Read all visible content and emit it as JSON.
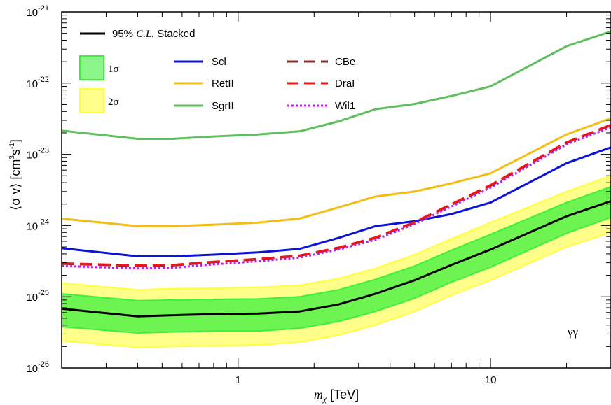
{
  "chart_data": {
    "type": "line",
    "xscale": "log",
    "yscale": "log",
    "xlim": [
      0.2,
      30
    ],
    "ylim": [
      1e-26,
      1e-21
    ],
    "xlabel": {
      "italic": "m",
      "sub": "χ",
      "rest": " [TeV]"
    },
    "ylabel": {
      "main": "⟨σ v⟩ [cm",
      "sup1": "3",
      "mid": "s",
      "sup2": "-1",
      "end": "]"
    },
    "x_tick_labels": [
      {
        "value": 1,
        "label": "1"
      },
      {
        "value": 10,
        "label": "10"
      }
    ],
    "y_tick_labels": [
      {
        "value": 1e-21,
        "base": "10",
        "exp": "-21"
      },
      {
        "value": 1e-22,
        "base": "10",
        "exp": "-22"
      },
      {
        "value": 1e-23,
        "base": "10",
        "exp": "-23"
      },
      {
        "value": 1e-24,
        "base": "10",
        "exp": "-24"
      },
      {
        "value": 1e-25,
        "base": "10",
        "exp": "-25"
      },
      {
        "value": 1e-26,
        "base": "10",
        "exp": "-26"
      }
    ],
    "annotation": "γγ",
    "x": [
      0.2,
      0.4,
      0.55,
      0.8,
      1.2,
      1.75,
      2.5,
      3.5,
      5,
      7,
      10,
      20,
      30
    ],
    "stacked": {
      "name": "95% C.L. Stacked",
      "name_prefix": "95% ",
      "name_italic": "C.L.",
      "name_suffix": " Stacked",
      "color": "#000000",
      "values": [
        6.8e-26,
        5.3e-26,
        5.5e-26,
        5.7e-26,
        5.8e-26,
        6.2e-26,
        7.8e-26,
        1.1e-25,
        1.7e-25,
        2.8e-25,
        4.6e-25,
        1.35e-24,
        2.2e-24
      ]
    },
    "band_1sigma": {
      "label": "1σ",
      "color": "#3cf03c",
      "lower": [
        3.8e-26,
        3.1e-26,
        3.2e-26,
        3.3e-26,
        3.3e-26,
        3.6e-26,
        4.5e-26,
        6.2e-26,
        9.5e-26,
        1.6e-25,
        2.6e-25,
        7.8e-25,
        1.3e-24
      ],
      "upper": [
        1.1e-25,
        8.8e-26,
        9e-26,
        9.2e-26,
        9.3e-26,
        1e-25,
        1.25e-25,
        1.75e-25,
        2.7e-25,
        4.5e-25,
        7.5e-25,
        2.1e-24,
        3.5e-24
      ]
    },
    "band_2sigma": {
      "label": "2σ",
      "color": "#ffff3c",
      "lower": [
        2.4e-26,
        1.95e-26,
        2e-26,
        2.05e-26,
        2.1e-26,
        2.3e-26,
        2.9e-26,
        4e-26,
        6.2e-26,
        1.05e-25,
        1.7e-25,
        5e-25,
        8e-25
      ],
      "upper": [
        1.55e-25,
        1.25e-25,
        1.3e-25,
        1.32e-25,
        1.35e-25,
        1.45e-25,
        1.8e-25,
        2.5e-25,
        3.9e-25,
        6.5e-25,
        1.1e-24,
        3e-24,
        5e-24
      ]
    },
    "series": [
      {
        "name": "Scl",
        "color": "#0a14d2",
        "dash": "solid",
        "values": [
          4.8e-25,
          3.7e-25,
          3.7e-25,
          3.9e-25,
          4.2e-25,
          4.7e-25,
          6.7e-25,
          9.8e-25,
          1.15e-24,
          1.45e-24,
          2.1e-24,
          7.5e-24,
          1.25e-23
        ]
      },
      {
        "name": "RetII",
        "color": "#f5bd14",
        "dash": "solid",
        "values": [
          1.25e-24,
          9.8e-25,
          9.8e-25,
          1.03e-24,
          1.1e-24,
          1.25e-24,
          1.8e-24,
          2.55e-24,
          3e-24,
          3.9e-24,
          5.4e-24,
          1.9e-23,
          3.2e-23
        ]
      },
      {
        "name": "SgrII",
        "color": "#5fbf5f",
        "dash": "solid",
        "values": [
          2.15e-23,
          1.65e-23,
          1.65e-23,
          1.78e-23,
          1.9e-23,
          2.1e-23,
          2.9e-23,
          4.3e-23,
          5.1e-23,
          6.6e-23,
          9e-23,
          3.3e-22,
          5.3e-22
        ]
      },
      {
        "name": "CBe",
        "color": "#8c2d2d",
        "dash": "dashed",
        "values": [
          2.9e-25,
          2.7e-25,
          2.75e-25,
          3.05e-25,
          3.35e-25,
          3.75e-25,
          4.8e-25,
          6.7e-25,
          1.1e-24,
          1.95e-24,
          3.6e-24,
          1.45e-23,
          2.55e-23
        ]
      },
      {
        "name": "DraI",
        "color": "#f01414",
        "dash": "dashed",
        "values": [
          2.95e-25,
          2.75e-25,
          2.8e-25,
          3.1e-25,
          3.4e-25,
          3.8e-25,
          4.9e-25,
          6.8e-25,
          1.12e-24,
          2e-24,
          3.7e-24,
          1.48e-23,
          2.6e-23
        ]
      },
      {
        "name": "Wil1",
        "color": "#b91ee6",
        "dash": "dotted",
        "values": [
          2.7e-25,
          2.5e-25,
          2.55e-25,
          2.85e-25,
          3.15e-25,
          3.55e-25,
          4.6e-25,
          6.3e-25,
          1.05e-24,
          1.85e-24,
          3.4e-24,
          1.38e-23,
          2.4e-23
        ]
      }
    ]
  }
}
